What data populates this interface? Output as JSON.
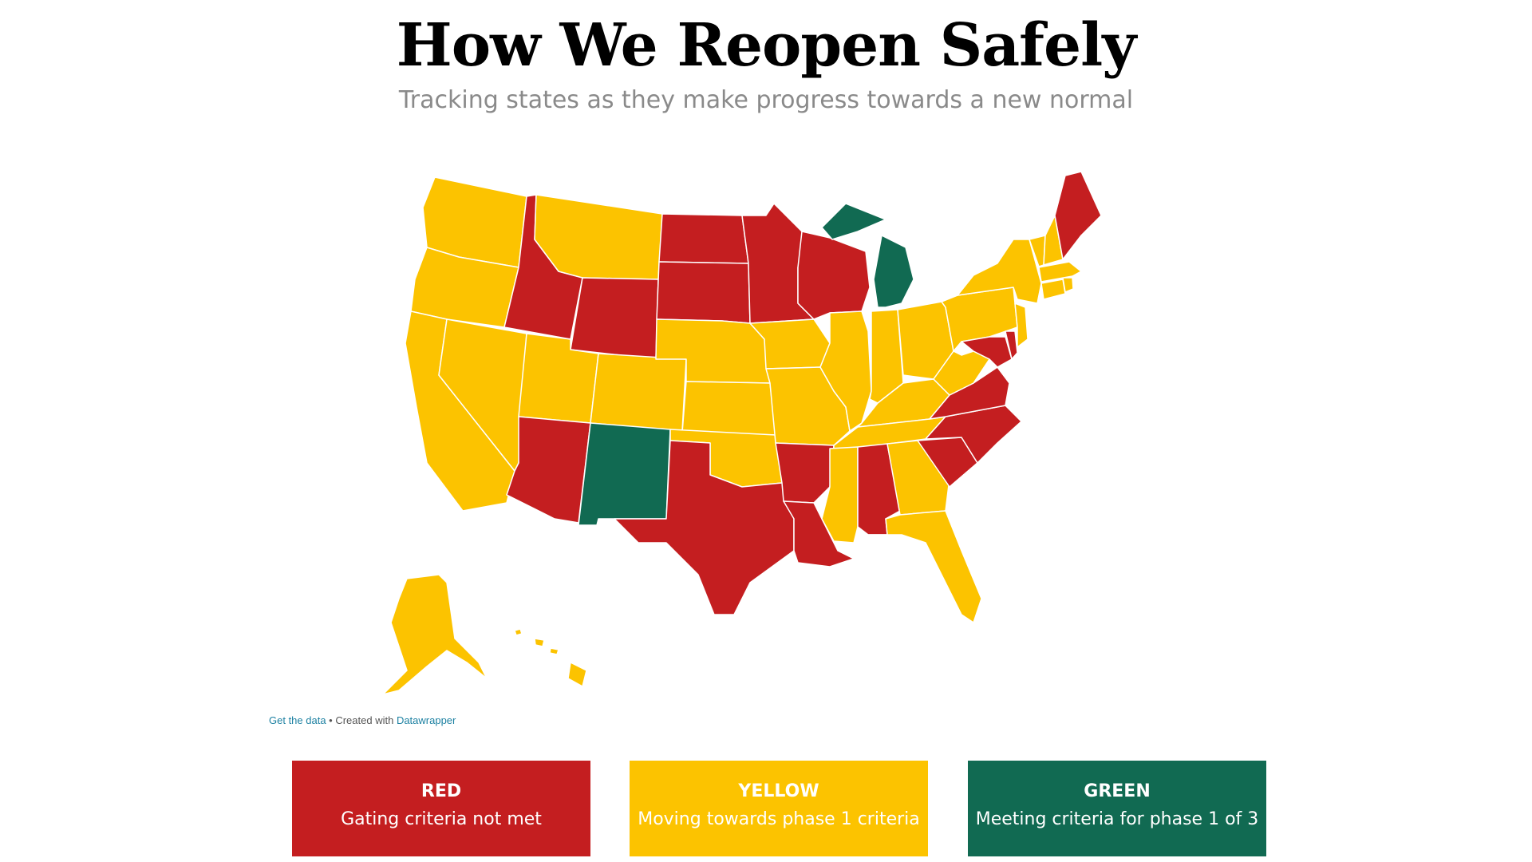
{
  "header": {
    "title": "How We Reopen Safely",
    "subtitle": "Tracking states as they make progress towards a new normal"
  },
  "colors": {
    "red": "#c41e20",
    "yellow": "#fcc300",
    "green": "#116a52"
  },
  "credit": {
    "get_data": "Get the data",
    "separator": " • Created with ",
    "tool": "Datawrapper"
  },
  "legend": [
    {
      "key": "red",
      "label": "RED",
      "description": "Gating criteria not met"
    },
    {
      "key": "yellow",
      "label": "YELLOW",
      "description": "Moving towards phase 1 criteria"
    },
    {
      "key": "green",
      "label": "GREEN",
      "description": "Meeting criteria for phase 1 of 3"
    }
  ],
  "states": {
    "WA": "yellow",
    "OR": "yellow",
    "CA": "yellow",
    "NV": "yellow",
    "ID": "red",
    "MT": "yellow",
    "WY": "red",
    "UT": "yellow",
    "AZ": "red",
    "CO": "yellow",
    "NM": "green",
    "ND": "red",
    "SD": "red",
    "NE": "yellow",
    "KS": "yellow",
    "OK": "yellow",
    "TX": "red",
    "MN": "red",
    "IA": "yellow",
    "MO": "yellow",
    "AR": "red",
    "LA": "red",
    "WI": "red",
    "IL": "yellow",
    "MI": "green",
    "IN": "yellow",
    "OH": "yellow",
    "KY": "yellow",
    "TN": "yellow",
    "MS": "yellow",
    "AL": "red",
    "GA": "yellow",
    "FL": "yellow",
    "SC": "red",
    "NC": "red",
    "VA": "red",
    "WV": "yellow",
    "PA": "yellow",
    "NY": "yellow",
    "MD": "red",
    "DE": "red",
    "NJ": "yellow",
    "CT": "yellow",
    "RI": "yellow",
    "MA": "yellow",
    "VT": "yellow",
    "NH": "yellow",
    "ME": "red",
    "AK": "yellow",
    "HI": "yellow"
  }
}
